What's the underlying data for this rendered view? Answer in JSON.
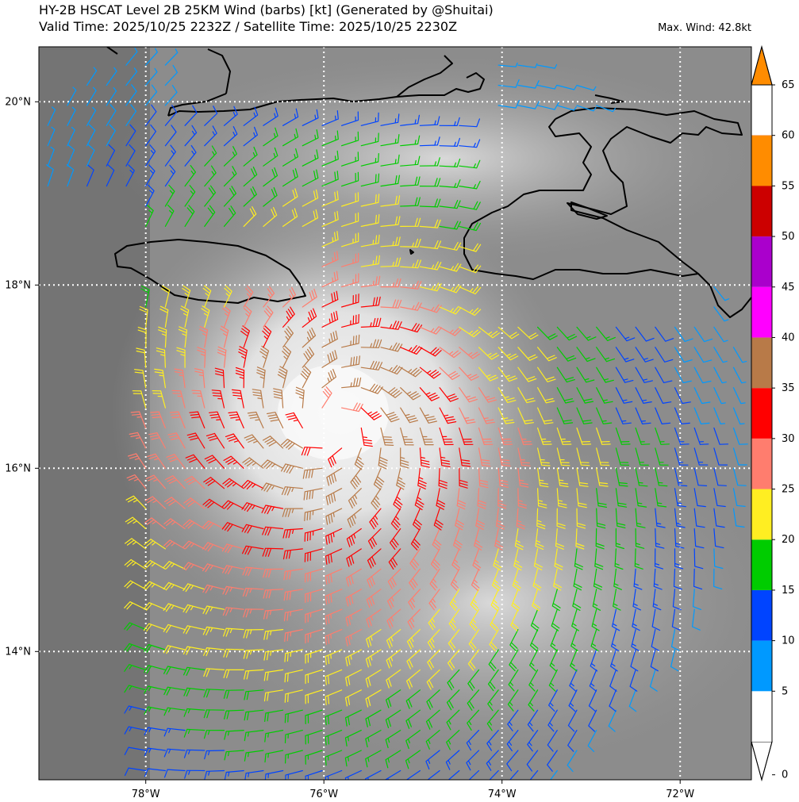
{
  "header": {
    "title_line1": "HY-2B HSCAT Level 2B 25KM Wind (barbs) [kt] (Generated by @Shuitai)",
    "title_line2": "Valid Time: 2025/10/25 2232Z / Satellite Time: 2025/10/25 2230Z",
    "max_wind": "Max. Wind: 42.8kt"
  },
  "map": {
    "lon_range": [
      -79.2,
      -71.2
    ],
    "lat_range": [
      12.6,
      20.6
    ],
    "lon_ticks": [
      {
        "value": -78,
        "label": "78°W"
      },
      {
        "value": -76,
        "label": "76°W"
      },
      {
        "value": -74,
        "label": "74°W"
      },
      {
        "value": -72,
        "label": "72°W"
      }
    ],
    "lat_ticks": [
      {
        "value": 20,
        "label": "20°N"
      },
      {
        "value": 18,
        "label": "18°N"
      },
      {
        "value": 16,
        "label": "16°N"
      },
      {
        "value": 14,
        "label": "14°N"
      }
    ],
    "storm_center": {
      "lon": -75.9,
      "lat": 16.5
    },
    "gridlines": "dotted-white"
  },
  "colorbar": {
    "levels": [
      0,
      5,
      10,
      15,
      20,
      25,
      30,
      35,
      40,
      45,
      50,
      55,
      60,
      65
    ],
    "colors": [
      "#ffffff",
      "#0099ff",
      "#0044ff",
      "#00cc00",
      "#ffee22",
      "#ff7d6e",
      "#ff0000",
      "#b87a48",
      "#ff00ff",
      "#aa00cc",
      "#cc0000",
      "#aa0000",
      "#ff8c00"
    ],
    "extend": "both"
  }
}
